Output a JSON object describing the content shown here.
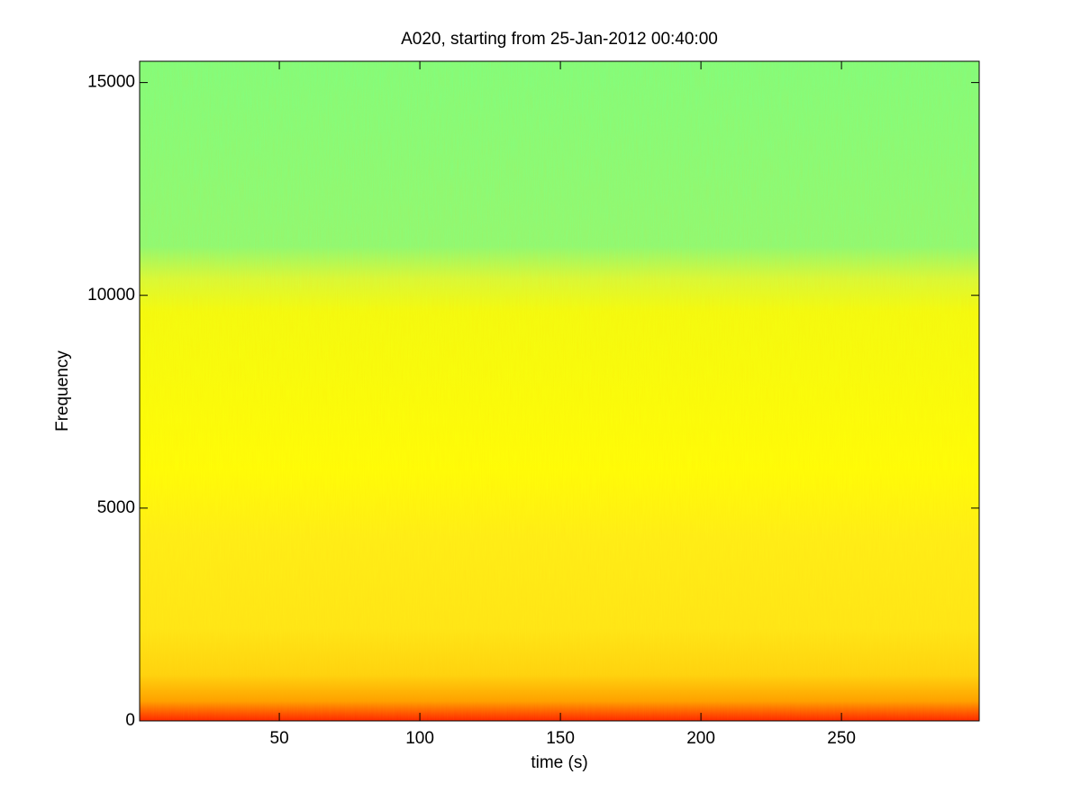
{
  "chart_data": {
    "type": "spectrogram",
    "title": "A020, starting from 25-Jan-2012 00:40:00",
    "x_label": "time (s)",
    "y_label": "Frequency",
    "xlim": [
      0.3,
      299
    ],
    "xticks": [
      50,
      100,
      150,
      200,
      250
    ],
    "ylim": [
      0,
      15500
    ],
    "yticks": [
      0,
      5000,
      10000,
      15000
    ]
  }
}
